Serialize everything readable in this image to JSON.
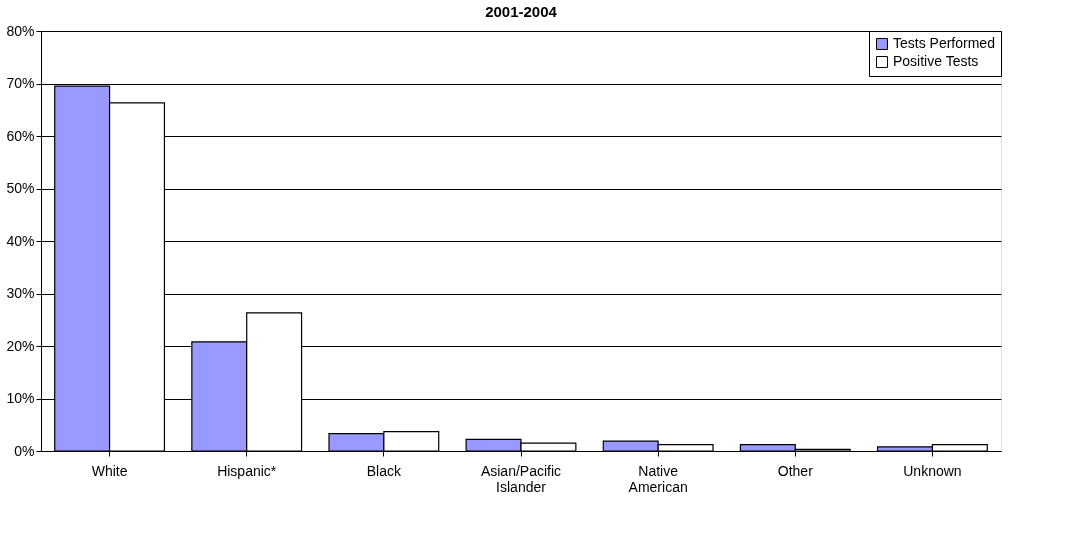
{
  "chart_data": {
    "type": "bar",
    "title": "2001-2004",
    "categories": [
      "White",
      "Hispanic*",
      "Black",
      "Asian/Pacific Islander",
      "Native American",
      "Other",
      "Unknown"
    ],
    "series": [
      {
        "name": "Tests Performed",
        "color": "#9999ff",
        "values": [
          69.5,
          20.8,
          3.3,
          2.2,
          1.9,
          1.2,
          0.8
        ]
      },
      {
        "name": "Positive Tests",
        "color": "#ffffff",
        "values": [
          66.3,
          26.3,
          3.7,
          1.5,
          1.2,
          0.3,
          1.2
        ]
      }
    ],
    "ylim": [
      0,
      80
    ],
    "yticks": [
      {
        "value": 0,
        "label": "0%"
      },
      {
        "value": 10,
        "label": "10%"
      },
      {
        "value": 20,
        "label": "20%"
      },
      {
        "value": 30,
        "label": "30%"
      },
      {
        "value": 40,
        "label": "40%"
      },
      {
        "value": 50,
        "label": "50%"
      },
      {
        "value": 60,
        "label": "60%"
      },
      {
        "value": 70,
        "label": "70%"
      },
      {
        "value": 80,
        "label": "80%"
      }
    ],
    "grid": "y",
    "legend": "top right"
  }
}
